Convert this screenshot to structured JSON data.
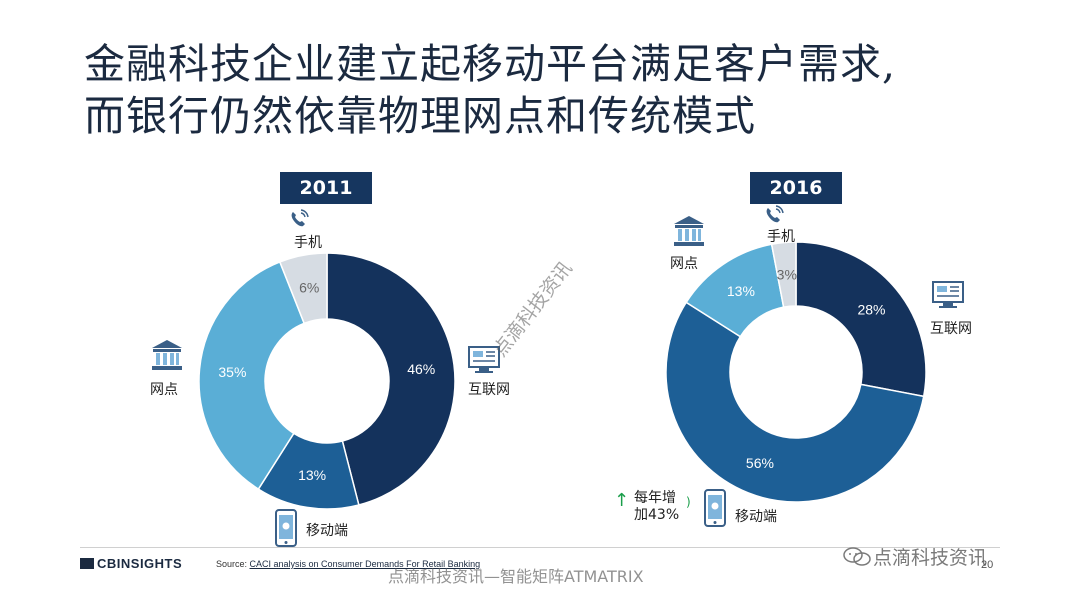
{
  "slide": {
    "title_line1": "金融科技企业建立起移动平台满足客户需求,",
    "title_line2": "而银行仍然依靠物理网点和传统模式",
    "page_number": "20"
  },
  "growth_note": {
    "text_line1": "每年增",
    "text_line2": "加43%"
  },
  "footer": {
    "logo": "CBINSIGHTS",
    "source_prefix": "Source: ",
    "source_link": "CACI analysis on Consumer Demands For Retail Banking"
  },
  "watermarks": {
    "diagonal": "点滴科技资讯",
    "bottom": "点滴科技资讯—智能矩阵ATMATRIX",
    "wechat": "点滴科技资讯"
  },
  "icons": {
    "phone": "phone-icon",
    "bank": "bank-icon",
    "internet": "computer-icon",
    "mobile": "smartphone-icon",
    "wechat": "wechat-icon"
  },
  "colors": {
    "internet": "#14325c",
    "mobile": "#1d5f96",
    "branch": "#5aaed6",
    "phone": "#d6dce3",
    "year_box": "#16365f"
  },
  "chart_data": [
    {
      "type": "pie",
      "title": "2011",
      "categories": [
        "互联网",
        "移动端",
        "网点",
        "手机"
      ],
      "values": [
        46,
        13,
        35,
        6
      ],
      "labels": [
        "46%",
        "13%",
        "35%",
        "6%"
      ]
    },
    {
      "type": "pie",
      "title": "2016",
      "categories": [
        "互联网",
        "移动端",
        "网点",
        "手机"
      ],
      "values": [
        28,
        56,
        13,
        3
      ],
      "labels": [
        "28%",
        "56%",
        "13%",
        "3%"
      ]
    }
  ]
}
